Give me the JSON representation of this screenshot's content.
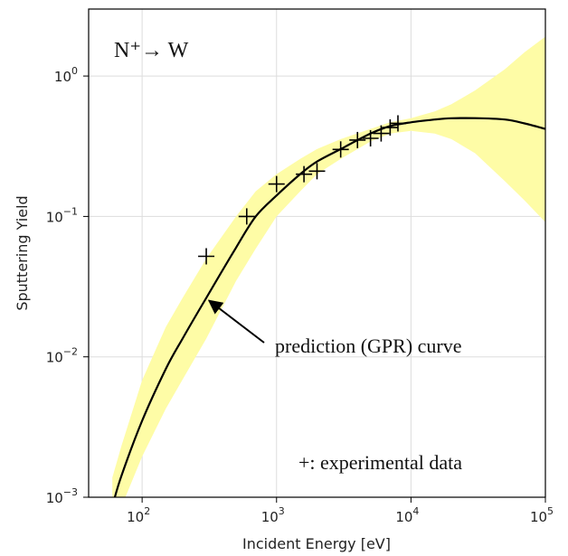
{
  "chart_data": {
    "type": "line",
    "title": "N⁺→ W",
    "xlabel": "Incident Energy [eV]",
    "ylabel": "Sputtering Yield",
    "x_scale": "log",
    "y_scale": "log",
    "xlim": [
      40,
      100000
    ],
    "ylim": [
      0.001,
      3
    ],
    "grid": true,
    "x_ticks": [
      {
        "value": 100,
        "base": "10",
        "exp": "2"
      },
      {
        "value": 1000,
        "base": "10",
        "exp": "3"
      },
      {
        "value": 10000,
        "base": "10",
        "exp": "4"
      },
      {
        "value": 100000,
        "base": "10",
        "exp": "5"
      }
    ],
    "y_ticks": [
      {
        "value": 0.001,
        "base": "10",
        "exp": "−3"
      },
      {
        "value": 0.01,
        "base": "10",
        "exp": "−2"
      },
      {
        "value": 0.1,
        "base": "10",
        "exp": "−1"
      },
      {
        "value": 1,
        "base": "10",
        "exp": "0"
      }
    ],
    "prediction_curve": {
      "label": "prediction (GPR) curve",
      "color": "#000000",
      "x": [
        60,
        70,
        100,
        150,
        200,
        300,
        500,
        700,
        1000,
        1500,
        2000,
        3000,
        5000,
        7000,
        10000,
        15000,
        20000,
        30000,
        50000,
        70000,
        100000
      ],
      "y": [
        0.00086,
        0.00141,
        0.0035,
        0.0082,
        0.0135,
        0.0263,
        0.06,
        0.1,
        0.141,
        0.2,
        0.246,
        0.302,
        0.389,
        0.44,
        0.468,
        0.49,
        0.5,
        0.501,
        0.49,
        0.46,
        0.42
      ]
    },
    "uncertainty_band": {
      "color": "#fefca6",
      "upper": [
        0.00138,
        0.0023,
        0.0068,
        0.0163,
        0.0263,
        0.0501,
        0.1,
        0.151,
        0.2,
        0.257,
        0.302,
        0.355,
        0.42,
        0.468,
        0.501,
        0.56,
        0.63,
        0.79,
        1.12,
        1.48,
        1.91
      ],
      "lower": [
        0.00052,
        0.00085,
        0.00195,
        0.00427,
        0.0069,
        0.0135,
        0.0347,
        0.0589,
        0.1,
        0.151,
        0.2,
        0.257,
        0.342,
        0.389,
        0.407,
        0.389,
        0.355,
        0.282,
        0.178,
        0.13,
        0.091
      ]
    },
    "experimental_data": {
      "label": "+: experimental data",
      "marker": "+",
      "x": [
        300,
        600,
        1000,
        1600,
        2000,
        3000,
        4000,
        5000,
        6000,
        7000,
        8000
      ],
      "y": [
        0.052,
        0.1,
        0.17,
        0.2,
        0.21,
        0.3,
        0.35,
        0.36,
        0.39,
        0.43,
        0.46
      ]
    },
    "annotation": {
      "text": "prediction (GPR) curve",
      "arrow_to": {
        "x": 300,
        "y": 0.0263
      }
    }
  }
}
